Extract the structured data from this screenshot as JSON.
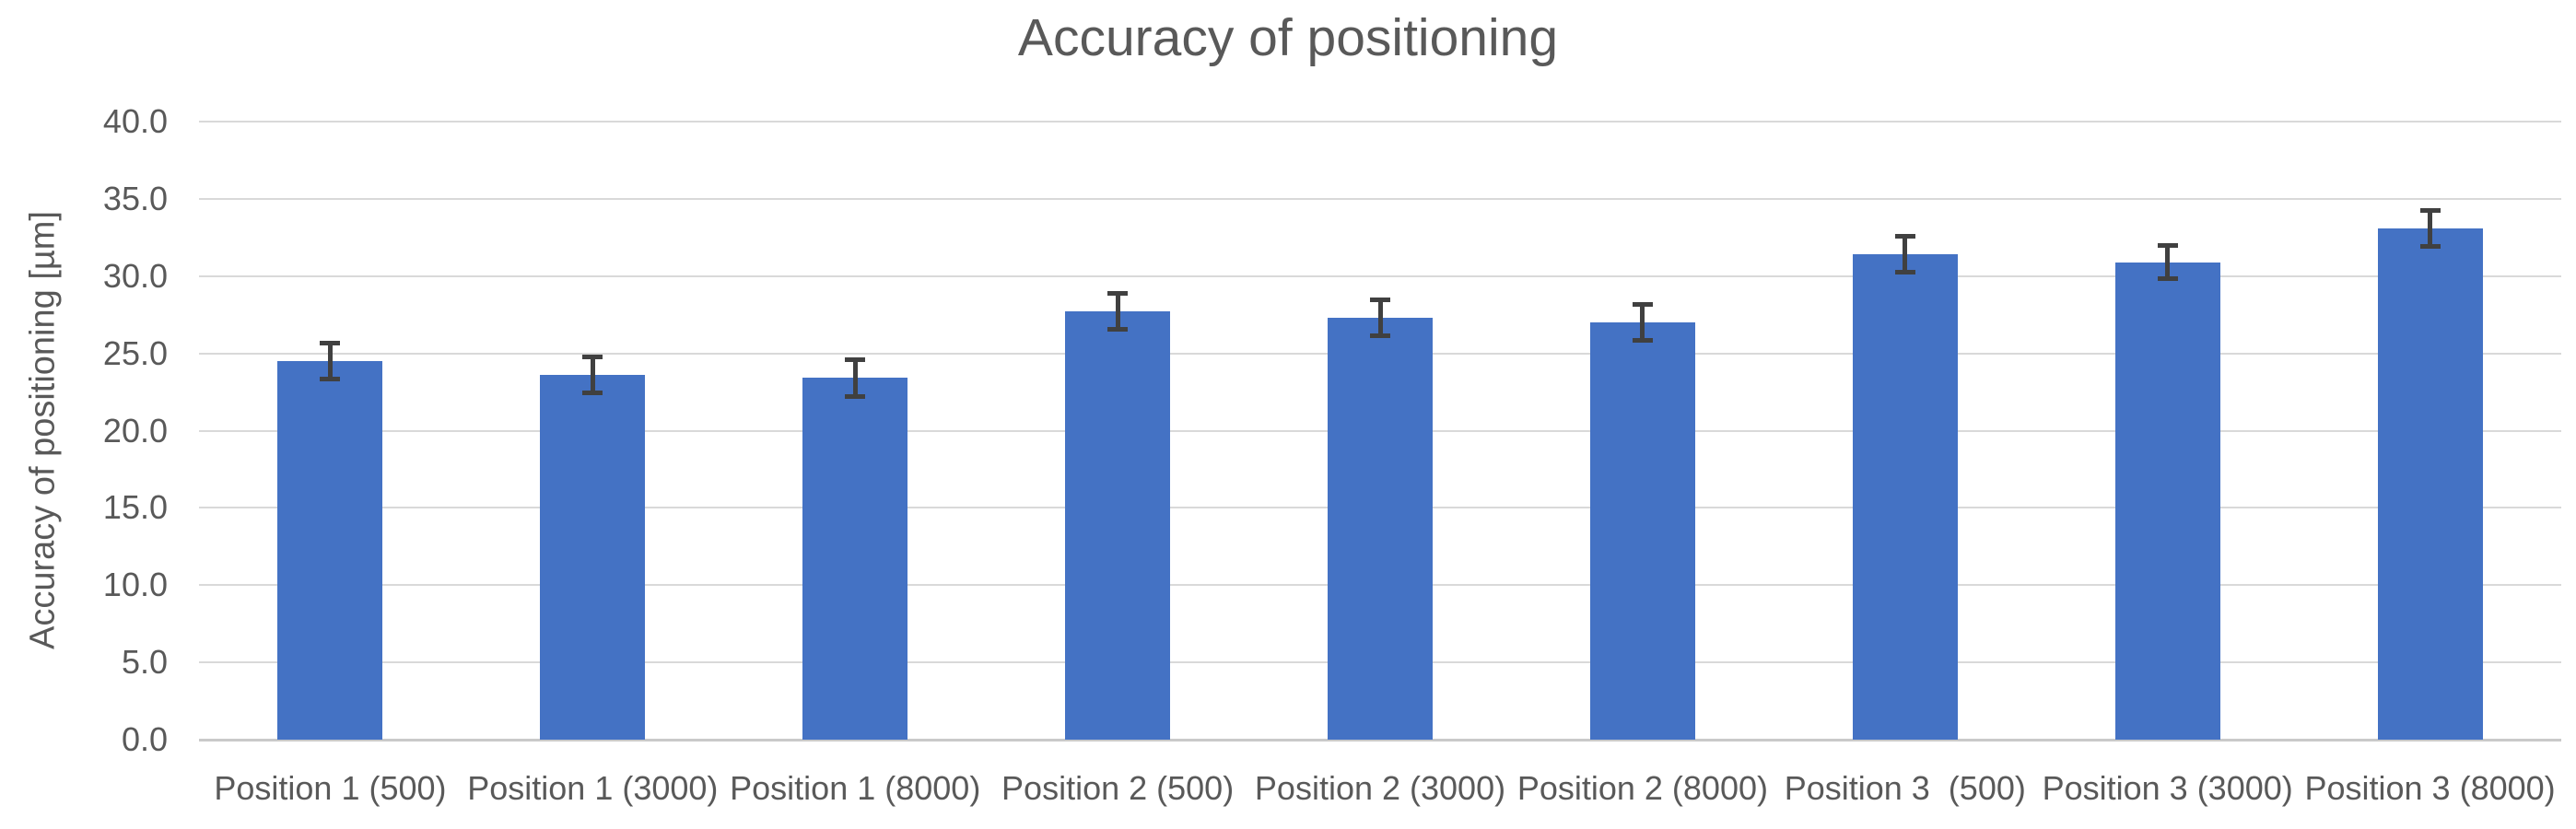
{
  "chart_data": {
    "type": "bar",
    "title": "Accuracy of positioning",
    "xlabel": "",
    "ylabel": "Accuracy of positioning [µm]",
    "categories": [
      "Position 1 (500)",
      "Position 1 (3000)",
      "Position 1 (8000)",
      "Position 2 (500)",
      "Position 2 (3000)",
      "Position 2 (8000)",
      "Position 3  (500)",
      "Position 3 (3000)",
      "Position 3 (8000)"
    ],
    "series": [
      {
        "name": "Accuracy of positioning",
        "values": [
          24.5,
          23.6,
          23.4,
          27.7,
          27.3,
          27.0,
          31.4,
          30.9,
          33.1
        ],
        "error_bars": [
          1.2,
          1.2,
          1.2,
          1.2,
          1.2,
          1.2,
          1.2,
          1.1,
          1.2
        ]
      }
    ],
    "ylim": [
      0,
      40
    ],
    "ytick_step": 5,
    "ytick_decimals": 1,
    "grid": true,
    "legend": "none",
    "colors": {
      "bar_fill": "#4472C4",
      "error_bar": "#404040",
      "gridline": "#D9D9D9",
      "baseline": "#C9C9C9",
      "text": "#595959",
      "background": "#FFFFFF"
    }
  }
}
